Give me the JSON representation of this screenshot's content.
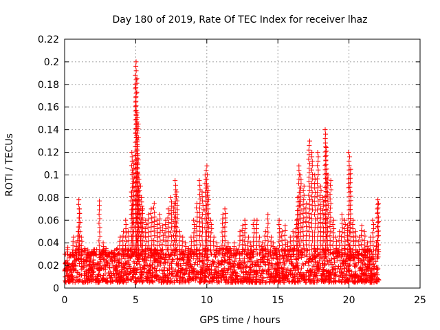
{
  "chart_data": {
    "type": "scatter",
    "title": "Day 180 of 2019, Rate Of TEC Index for receiver lhaz",
    "xlabel": "GPS time / hours",
    "ylabel": "ROTI / TECUs",
    "xlim": [
      0,
      25
    ],
    "ylim": [
      0,
      0.22
    ],
    "xticks": [
      0,
      5,
      10,
      15,
      20,
      25
    ],
    "xtick_labels": [
      "0",
      "5",
      "10",
      "15",
      "20",
      "25"
    ],
    "yticks": [
      0,
      0.02,
      0.04,
      0.06,
      0.08,
      0.1,
      0.12,
      0.14,
      0.16,
      0.18,
      0.2,
      0.22
    ],
    "ytick_labels": [
      "0",
      "0.02",
      "0.04",
      "0.06",
      "0.08",
      "0.1",
      "0.12",
      "0.14",
      "0.16",
      "0.18",
      "0.2",
      "0.22"
    ],
    "grid": true,
    "marker": "+",
    "color": "#ff0000",
    "series": [
      {
        "name": "ROTI",
        "x": [
          0.05,
          0.2,
          0.4,
          0.6,
          0.8,
          0.95,
          1.0,
          1.05,
          1.2,
          1.4,
          1.6,
          1.8,
          2.0,
          2.2,
          2.45,
          2.5,
          2.7,
          2.9,
          3.1,
          3.3,
          3.5,
          3.7,
          3.9,
          4.1,
          4.3,
          4.5,
          4.7,
          4.75,
          4.85,
          5.0,
          5.05,
          5.1,
          5.15,
          5.2,
          5.3,
          5.4,
          5.5,
          5.7,
          5.9,
          6.1,
          6.3,
          6.5,
          6.7,
          6.9,
          7.1,
          7.3,
          7.5,
          7.7,
          7.8,
          7.9,
          8.1,
          8.3,
          8.5,
          8.7,
          8.9,
          9.1,
          9.3,
          9.5,
          9.7,
          9.9,
          10.0,
          10.1,
          10.3,
          10.5,
          10.7,
          10.9,
          11.1,
          11.3,
          11.5,
          11.7,
          11.9,
          12.1,
          12.3,
          12.5,
          12.7,
          12.9,
          13.1,
          13.3,
          13.5,
          13.7,
          13.9,
          14.1,
          14.3,
          14.5,
          14.7,
          14.9,
          15.1,
          15.3,
          15.5,
          15.7,
          15.9,
          16.1,
          16.3,
          16.4,
          16.5,
          16.6,
          16.8,
          17.0,
          17.2,
          17.4,
          17.6,
          17.8,
          18.0,
          18.2,
          18.35,
          18.4,
          18.5,
          18.7,
          18.9,
          19.1,
          19.3,
          19.5,
          19.7,
          19.9,
          20.0,
          20.1,
          20.3,
          20.5,
          20.7,
          20.9,
          21.1,
          21.3,
          21.5,
          21.7,
          21.9,
          22.0,
          22.05
        ],
        "y": [
          0.03,
          0.036,
          0.028,
          0.045,
          0.04,
          0.05,
          0.078,
          0.07,
          0.045,
          0.035,
          0.03,
          0.028,
          0.032,
          0.03,
          0.077,
          0.03,
          0.04,
          0.035,
          0.03,
          0.032,
          0.028,
          0.03,
          0.045,
          0.05,
          0.06,
          0.05,
          0.085,
          0.12,
          0.11,
          0.2,
          0.185,
          0.155,
          0.145,
          0.1,
          0.09,
          0.08,
          0.07,
          0.06,
          0.065,
          0.07,
          0.075,
          0.06,
          0.065,
          0.055,
          0.06,
          0.07,
          0.08,
          0.075,
          0.095,
          0.085,
          0.05,
          0.045,
          0.04,
          0.035,
          0.045,
          0.06,
          0.075,
          0.095,
          0.085,
          0.1,
          0.108,
          0.09,
          0.06,
          0.045,
          0.04,
          0.035,
          0.065,
          0.07,
          0.04,
          0.035,
          0.04,
          0.03,
          0.05,
          0.055,
          0.06,
          0.045,
          0.04,
          0.06,
          0.06,
          0.045,
          0.04,
          0.05,
          0.065,
          0.045,
          0.04,
          0.035,
          0.06,
          0.05,
          0.055,
          0.04,
          0.045,
          0.05,
          0.06,
          0.08,
          0.108,
          0.1,
          0.09,
          0.075,
          0.13,
          0.12,
          0.1,
          0.12,
          0.09,
          0.08,
          0.14,
          0.125,
          0.1,
          0.095,
          0.06,
          0.045,
          0.05,
          0.065,
          0.06,
          0.055,
          0.12,
          0.105,
          0.06,
          0.05,
          0.045,
          0.055,
          0.05,
          0.04,
          0.045,
          0.06,
          0.04,
          0.078,
          0.075
        ]
      }
    ],
    "dense_band": {
      "x_range": [
        0,
        22.1
      ],
      "y_range": [
        0.005,
        0.035
      ],
      "note": "dense cloud of ROTI points across the day"
    }
  }
}
